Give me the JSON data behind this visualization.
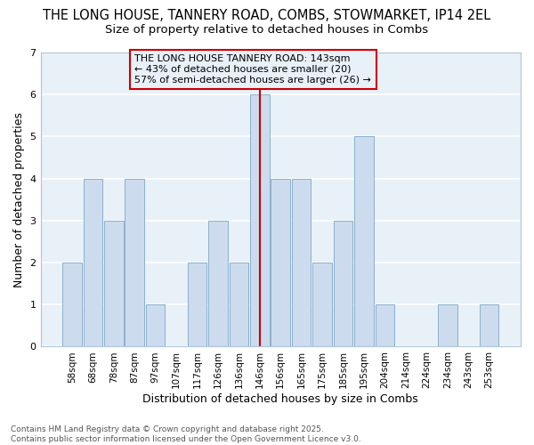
{
  "title1": "THE LONG HOUSE, TANNERY ROAD, COMBS, STOWMARKET, IP14 2EL",
  "title2": "Size of property relative to detached houses in Combs",
  "xlabel": "Distribution of detached houses by size in Combs",
  "ylabel": "Number of detached properties",
  "categories": [
    "58sqm",
    "68sqm",
    "78sqm",
    "87sqm",
    "97sqm",
    "107sqm",
    "117sqm",
    "126sqm",
    "136sqm",
    "146sqm",
    "156sqm",
    "165sqm",
    "175sqm",
    "185sqm",
    "195sqm",
    "204sqm",
    "214sqm",
    "224sqm",
    "234sqm",
    "243sqm",
    "253sqm"
  ],
  "values": [
    2,
    4,
    3,
    4,
    1,
    0,
    2,
    3,
    2,
    6,
    4,
    4,
    2,
    3,
    5,
    1,
    0,
    0,
    1,
    0,
    1
  ],
  "bar_color": "#ccdcee",
  "bar_edge_color": "#8ab0cc",
  "highlight_index": 9,
  "highlight_line_color": "#cc0000",
  "annotation_text": "THE LONG HOUSE TANNERY ROAD: 143sqm\n← 43% of detached houses are smaller (20)\n57% of semi-detached houses are larger (26) →",
  "annotation_box_edge": "#cc0000",
  "ylim": [
    0,
    7
  ],
  "yticks": [
    0,
    1,
    2,
    3,
    4,
    5,
    6,
    7
  ],
  "footnote": "Contains HM Land Registry data © Crown copyright and database right 2025.\nContains public sector information licensed under the Open Government Licence v3.0.",
  "bg_color": "#ffffff",
  "plot_bg_color": "#e8f0f8",
  "grid_color": "#ffffff",
  "title_fontsize": 10.5,
  "subtitle_fontsize": 9.5,
  "tick_fontsize": 7.5,
  "ylabel_fontsize": 9,
  "xlabel_fontsize": 9,
  "annot_fontsize": 8
}
